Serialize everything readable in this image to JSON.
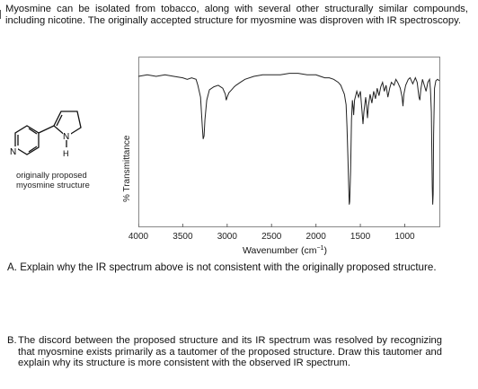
{
  "intro_text": "Myosmine can be isolated from tobacco, along with several other structurally similar compounds, including nicotine. The originally accepted structure for myosmine was disproven with IR spectroscopy.",
  "structure": {
    "caption_line1": "originally proposed",
    "caption_line2": "myosmine structure",
    "atom_n_pyridine": "N",
    "atom_n_ring": "N",
    "atom_h": "H"
  },
  "chart_data": {
    "type": "line",
    "ylabel": "% Transmittance",
    "xlabel_main": "Wavenumber (cm",
    "xlabel_sup": "−1",
    "xlabel_close": ")",
    "x_ticks": [
      "4000",
      "3500",
      "3000",
      "2500",
      "2000",
      "1500",
      "1000"
    ],
    "xlim": [
      4000,
      600
    ],
    "x_reversed": true,
    "grid": false,
    "series": [
      {
        "values_description_free": true,
        "points": [
          [
            4000,
            94
          ],
          [
            3900,
            95
          ],
          [
            3800,
            94
          ],
          [
            3700,
            95
          ],
          [
            3600,
            94
          ],
          [
            3500,
            93
          ],
          [
            3450,
            92
          ],
          [
            3400,
            93
          ],
          [
            3350,
            92
          ],
          [
            3330,
            88
          ],
          [
            3300,
            80
          ],
          [
            3290,
            70
          ],
          [
            3280,
            60
          ],
          [
            3270,
            52
          ],
          [
            3260,
            54
          ],
          [
            3250,
            65
          ],
          [
            3230,
            78
          ],
          [
            3200,
            85
          ],
          [
            3150,
            87
          ],
          [
            3100,
            88
          ],
          [
            3050,
            86
          ],
          [
            3020,
            82
          ],
          [
            3010,
            78
          ],
          [
            3000,
            80
          ],
          [
            2980,
            83
          ],
          [
            2950,
            85
          ],
          [
            2920,
            87
          ],
          [
            2900,
            88
          ],
          [
            2850,
            90
          ],
          [
            2800,
            92
          ],
          [
            2700,
            94
          ],
          [
            2600,
            95
          ],
          [
            2500,
            95
          ],
          [
            2400,
            95
          ],
          [
            2300,
            96
          ],
          [
            2200,
            96
          ],
          [
            2100,
            95
          ],
          [
            2000,
            95
          ],
          [
            1950,
            94
          ],
          [
            1900,
            93
          ],
          [
            1850,
            93
          ],
          [
            1800,
            92
          ],
          [
            1750,
            90
          ],
          [
            1720,
            88
          ],
          [
            1700,
            85
          ],
          [
            1680,
            82
          ],
          [
            1660,
            75
          ],
          [
            1650,
            60
          ],
          [
            1640,
            40
          ],
          [
            1630,
            18
          ],
          [
            1625,
            8
          ],
          [
            1620,
            10
          ],
          [
            1610,
            30
          ],
          [
            1600,
            65
          ],
          [
            1590,
            78
          ],
          [
            1580,
            72
          ],
          [
            1575,
            68
          ],
          [
            1565,
            78
          ],
          [
            1540,
            84
          ],
          [
            1520,
            80
          ],
          [
            1500,
            84
          ],
          [
            1480,
            70
          ],
          [
            1470,
            62
          ],
          [
            1460,
            70
          ],
          [
            1440,
            80
          ],
          [
            1430,
            74
          ],
          [
            1420,
            66
          ],
          [
            1410,
            74
          ],
          [
            1390,
            82
          ],
          [
            1370,
            76
          ],
          [
            1350,
            84
          ],
          [
            1330,
            79
          ],
          [
            1310,
            86
          ],
          [
            1290,
            81
          ],
          [
            1270,
            87
          ],
          [
            1250,
            90
          ],
          [
            1230,
            84
          ],
          [
            1210,
            88
          ],
          [
            1190,
            80
          ],
          [
            1170,
            86
          ],
          [
            1150,
            90
          ],
          [
            1120,
            88
          ],
          [
            1100,
            92
          ],
          [
            1080,
            90
          ],
          [
            1050,
            86
          ],
          [
            1030,
            80
          ],
          [
            1020,
            74
          ],
          [
            1010,
            82
          ],
          [
            990,
            88
          ],
          [
            960,
            92
          ],
          [
            940,
            93
          ],
          [
            910,
            89
          ],
          [
            880,
            93
          ],
          [
            860,
            90
          ],
          [
            840,
            80
          ],
          [
            830,
            78
          ],
          [
            820,
            85
          ],
          [
            800,
            92
          ],
          [
            780,
            88
          ],
          [
            760,
            84
          ],
          [
            740,
            90
          ],
          [
            720,
            92
          ],
          [
            710,
            85
          ],
          [
            700,
            70
          ],
          [
            695,
            45
          ],
          [
            690,
            20
          ],
          [
            685,
            8
          ],
          [
            680,
            15
          ],
          [
            675,
            55
          ],
          [
            665,
            86
          ],
          [
            650,
            91
          ],
          [
            630,
            92
          ],
          [
            610,
            91
          ]
        ]
      }
    ]
  },
  "question_a": {
    "label": "A.",
    "text": "Explain why the IR spectrum above is not consistent with the originally proposed structure."
  },
  "question_b": {
    "label": "B.",
    "text": "The discord between the proposed structure and its IR spectrum was resolved by recognizing that myosmine exists primarily as a tautomer of the proposed structure. Draw this tautomer and explain why its structure is more consistent with the observed IR spectrum."
  }
}
